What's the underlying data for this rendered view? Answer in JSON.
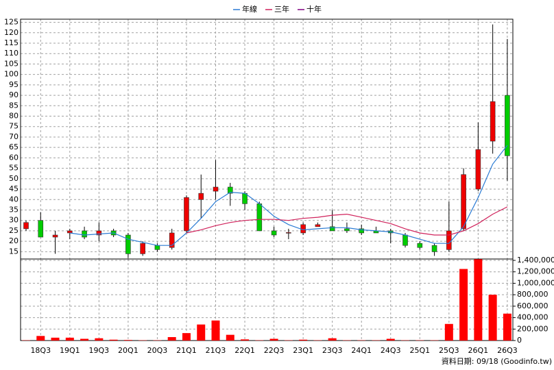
{
  "chart_data": {
    "type": "candlestick",
    "categories": [
      null,
      "18Q3",
      null,
      "19Q1",
      null,
      "19Q3",
      null,
      "20Q1",
      null,
      "20Q3",
      null,
      "21Q1",
      null,
      "21Q3",
      null,
      "22Q1",
      null,
      "22Q3",
      null,
      "23Q1",
      null,
      "23Q3",
      null,
      "24Q1",
      null,
      "24Q3",
      null,
      "25Q1",
      null,
      "25Q3",
      null,
      "26Q1",
      null,
      "26Q3"
    ],
    "open": [
      26,
      30,
      22,
      24,
      25,
      23,
      25,
      23,
      14,
      18,
      17,
      25,
      40,
      44,
      46,
      43,
      38,
      25,
      24,
      24,
      27,
      27,
      26,
      26,
      25,
      25,
      23,
      19,
      18,
      16,
      26,
      45,
      68,
      90
    ],
    "high": [
      30,
      34,
      25,
      26,
      27,
      29,
      26,
      24,
      20,
      19,
      26,
      42,
      52,
      59,
      48,
      44,
      39,
      27,
      26,
      29,
      29,
      35,
      29,
      28,
      27,
      26,
      24,
      20,
      19,
      39,
      55,
      77,
      124,
      117
    ],
    "low": [
      25,
      22,
      14,
      21,
      21,
      20,
      22,
      12,
      13,
      15,
      16,
      24,
      31,
      40,
      37,
      35,
      25,
      22,
      21,
      23,
      27,
      25,
      24,
      23,
      24,
      19,
      17,
      16,
      13,
      15,
      25,
      44,
      62,
      49
    ],
    "close": [
      29,
      22,
      23,
      25,
      22,
      25,
      23,
      14,
      19,
      16,
      24,
      41,
      43,
      46,
      43,
      38,
      25,
      23,
      24.2,
      28,
      28,
      25,
      25,
      24,
      24,
      24,
      18,
      17,
      15,
      25,
      52,
      64,
      87,
      61
    ],
    "up_color": "#ee0000",
    "down_color": "#00cc00",
    "series": [
      {
        "name": "年線",
        "color": "#2a7bd4",
        "values": [
          null,
          null,
          null,
          24,
          23,
          23.5,
          24,
          21,
          19.5,
          18,
          18,
          24,
          31,
          39,
          43.5,
          43,
          38,
          32,
          28,
          25.5,
          26,
          26.5,
          26.5,
          25.5,
          25,
          24.5,
          23,
          21,
          19,
          19,
          27,
          41,
          57,
          66
        ]
      },
      {
        "name": "三年",
        "color": "#d0205a",
        "values": [
          null,
          null,
          null,
          null,
          null,
          null,
          null,
          null,
          null,
          null,
          null,
          24,
          25.5,
          27.5,
          29,
          30,
          30.5,
          30.5,
          30,
          31,
          31.5,
          32.5,
          33,
          31.5,
          30,
          28.5,
          26,
          24,
          23,
          23,
          25,
          28.5,
          33,
          36.5
        ]
      },
      {
        "name": "十年",
        "color": "#800080",
        "values": [
          null,
          null,
          null,
          null,
          null,
          null,
          null,
          null,
          null,
          null,
          null,
          null,
          null,
          null,
          null,
          null,
          null,
          null,
          null,
          null,
          null,
          null,
          null,
          null,
          null,
          null,
          null,
          null,
          null,
          null,
          null,
          null,
          null,
          null
        ]
      }
    ],
    "ylim": [
      11.5,
      126.5
    ],
    "yticks": [
      15,
      20,
      25,
      30,
      35,
      40,
      45,
      50,
      55,
      60,
      65,
      70,
      75,
      80,
      85,
      90,
      95,
      100,
      105,
      110,
      115,
      120,
      125
    ],
    "grid": true,
    "volume": {
      "type": "bar",
      "color": "#ff0000",
      "values": [
        5000,
        80000,
        50000,
        50000,
        30000,
        40000,
        15000,
        10000,
        5000,
        5000,
        60000,
        130000,
        280000,
        350000,
        100000,
        20000,
        5000,
        30000,
        5000,
        15000,
        5000,
        40000,
        5000,
        5000,
        5000,
        30000,
        5000,
        5000,
        5000,
        290000,
        1250000,
        1420000,
        800000,
        470000
      ],
      "ylim": [
        0,
        1424000
      ],
      "yticks": [
        0,
        {
          "value": 200000,
          "label": "200,000"
        },
        {
          "value": 400000,
          "label": "400,000"
        },
        {
          "value": 600000,
          "label": "600,000"
        },
        {
          "value": 800000,
          "label": "800,000"
        },
        {
          "value": 1000000,
          "label": "1,000,000"
        },
        {
          "value": 1200000,
          "label": "1,200,000"
        },
        {
          "value": 1400000,
          "label": "1,400,000"
        }
      ]
    },
    "footnote": "資料日期: 09/18 (Goodinfo.tw)"
  }
}
